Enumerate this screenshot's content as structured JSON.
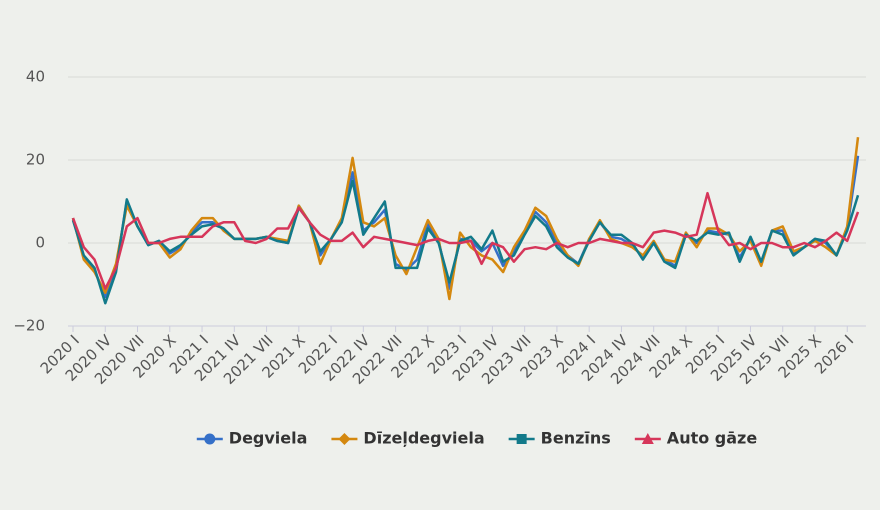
{
  "chart_data": {
    "type": "line",
    "categories": [
      "2020 I",
      null,
      null,
      "2020 IV",
      null,
      null,
      "2020 VII",
      null,
      null,
      "2020 X",
      null,
      null,
      "2021 I",
      null,
      null,
      "2021 IV",
      null,
      null,
      "2021 VII",
      null,
      null,
      "2021 X",
      null,
      null,
      "2022 I",
      null,
      null,
      "2022 IV",
      null,
      null,
      "2022 VII",
      null,
      null,
      "2022 X",
      null,
      null,
      "2023 I",
      null,
      null,
      "2023 IV",
      null,
      null,
      "2023 VII",
      null,
      null,
      "2023 X",
      null,
      null,
      "2024 I",
      null,
      null,
      "2024 IV",
      null,
      null,
      "2024 VII",
      null,
      null,
      "2024 X",
      null,
      null,
      "2025 I",
      null,
      null,
      "2025 IV",
      null,
      null,
      "2025 VII",
      null,
      null,
      "2025 X",
      null,
      null,
      "2026 I",
      null
    ],
    "series": [
      {
        "name": "Degviela",
        "color": "#3570c8",
        "marker": "circle",
        "values": [
          6,
          -3.5,
          -6.5,
          -13,
          -6,
          10,
          4,
          -0.5,
          0.5,
          -2.5,
          -1,
          2.5,
          5,
          5,
          3.5,
          1,
          1,
          1,
          1.5,
          0.5,
          0,
          9,
          5,
          -3,
          1,
          5.5,
          17,
          3,
          5,
          8,
          -5,
          -6.5,
          -4,
          4.5,
          0.5,
          -11,
          1,
          0.5,
          -2,
          0,
          -5.5,
          -2,
          2.5,
          7.5,
          5,
          0,
          -3,
          -5,
          1,
          5,
          1.5,
          1,
          -0.5,
          -3.5,
          0,
          -4,
          -5.5,
          2,
          0,
          3,
          2.5,
          2,
          -3.5,
          1,
          -5,
          3,
          3,
          -2.5,
          -1,
          1,
          0,
          -3,
          3.5,
          21
        ]
      },
      {
        "name": "Dīzeļdegviela",
        "color": "#d4880f",
        "marker": "diamond",
        "values": [
          6,
          -4,
          -7,
          -12,
          -5,
          9,
          4,
          0,
          0,
          -3.5,
          -1.5,
          3,
          6,
          6,
          3,
          1,
          1,
          1,
          1.5,
          1,
          0.5,
          9,
          5,
          -5,
          1,
          6,
          20.5,
          5,
          4,
          6,
          -3,
          -7.5,
          -1,
          5.5,
          1,
          -13.5,
          2.5,
          -1,
          -3,
          -4,
          -7,
          -1,
          3,
          8.5,
          6.5,
          1,
          -3,
          -5.5,
          1,
          5.5,
          1,
          0,
          -1,
          -3,
          0.5,
          -4,
          -4.5,
          2.5,
          -1,
          3.5,
          3.5,
          2,
          -2,
          0.5,
          -5.5,
          3,
          4,
          -2,
          -1,
          0.5,
          -1,
          -3,
          4,
          25.5
        ]
      },
      {
        "name": "Benzīns",
        "color": "#127a8a",
        "marker": "square",
        "values": [
          5.5,
          -3,
          -6,
          -14.5,
          -7,
          10.5,
          4,
          -0.5,
          0.5,
          -2,
          -0.5,
          2,
          4,
          4.5,
          3.5,
          1,
          1,
          1,
          1.5,
          0.5,
          0,
          8.5,
          5,
          -2,
          1,
          5,
          15,
          2,
          6,
          10,
          -6,
          -6,
          -6,
          3.5,
          0,
          -9.5,
          0.5,
          1.5,
          -1.5,
          3,
          -4.5,
          -3,
          2,
          6.5,
          4,
          -1,
          -3.5,
          -5,
          0.5,
          5,
          2,
          2,
          0,
          -4,
          0,
          -4.5,
          -6,
          2,
          0.5,
          2.5,
          2,
          2.5,
          -4.5,
          1.5,
          -4.5,
          3,
          2,
          -3,
          -1,
          1,
          0.5,
          -3,
          3,
          11.5
        ]
      },
      {
        "name": "Auto gāze",
        "color": "#d6365a",
        "marker": "triangle",
        "values": [
          6,
          -1,
          -4,
          -11,
          -6,
          4,
          6,
          0,
          0,
          1,
          1.5,
          1.5,
          1.5,
          4,
          5,
          5,
          0.5,
          0,
          1,
          3.5,
          3.5,
          8.5,
          5,
          2,
          0.5,
          0.5,
          2.5,
          -1,
          1.5,
          1,
          0.5,
          0,
          -0.5,
          0.5,
          1,
          0,
          0,
          0.5,
          -5,
          0,
          -1,
          -4.5,
          -1.5,
          -1,
          -1.5,
          0,
          -1,
          0,
          0,
          1,
          0.5,
          0,
          0,
          -1,
          2.5,
          3,
          2.5,
          1.5,
          2,
          12,
          3,
          -0.5,
          0,
          -1.5,
          0,
          0,
          -1,
          -1,
          0,
          -1,
          0.5,
          2.5,
          0.5,
          7.5
        ]
      }
    ],
    "ylim": [
      -20,
      40
    ],
    "yticks": [
      {
        "value": -20,
        "label": "−20"
      },
      0,
      20,
      40
    ],
    "grid": true,
    "legend": "bottom"
  }
}
